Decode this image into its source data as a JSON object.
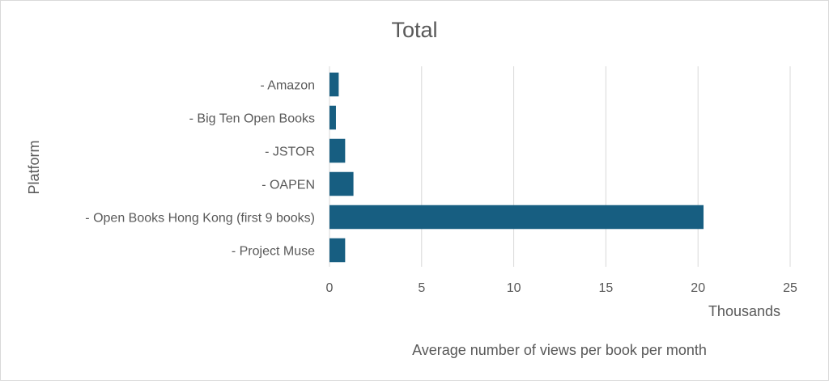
{
  "chart_data": {
    "type": "bar",
    "orientation": "horizontal",
    "title": "Total",
    "categories": [
      "- Amazon",
      "- Big Ten Open Books",
      "- JSTOR",
      "- OAPEN",
      "- Open Books Hong Kong (first 9 books)",
      "- Project Muse"
    ],
    "values": [
      0.5,
      0.35,
      0.85,
      1.3,
      20.3,
      0.85
    ],
    "xlabel": "Average number of views per book per month",
    "ylabel": "Platform",
    "x_unit_label": "Thousands",
    "xlim": [
      0,
      25
    ],
    "xticks": [
      0,
      5,
      10,
      15,
      20,
      25
    ],
    "grid": true,
    "legend": "none",
    "bar_color": "#175e81",
    "grid_color": "#d9d9d9"
  }
}
